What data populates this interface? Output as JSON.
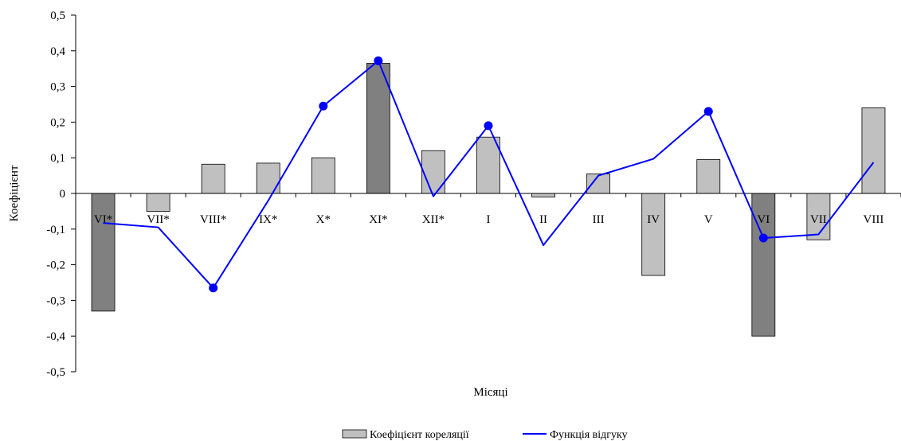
{
  "chart_data": {
    "type": "bar",
    "xlabel": "Місяці",
    "ylabel": "Коефіцієнт",
    "ylim": [
      -0.5,
      0.5
    ],
    "yticks": [
      0.5,
      0.4,
      0.3,
      0.2,
      0.1,
      0,
      -0.1,
      -0.2,
      -0.3,
      -0.4,
      -0.5
    ],
    "ytick_labels": [
      "0,5",
      "0,4",
      "0,3",
      "0,2",
      "0,1",
      "0",
      "-0,1",
      "-0,2",
      "-0,3",
      "-0,4",
      "-0,5"
    ],
    "categories": [
      "VI*",
      "VII*",
      "VIII*",
      "IX*",
      "X*",
      "XI*",
      "XII*",
      "I",
      "II",
      "III",
      "IV",
      "V",
      "VI",
      "VII",
      "VIII"
    ],
    "series": [
      {
        "name": "Коефіцієнт кореляції",
        "kind": "bar",
        "values": [
          -0.33,
          -0.05,
          0.082,
          0.085,
          0.1,
          0.365,
          0.12,
          0.158,
          -0.01,
          0.055,
          -0.23,
          0.095,
          -0.4,
          -0.13,
          0.24
        ],
        "highlight": [
          true,
          false,
          false,
          false,
          false,
          true,
          false,
          false,
          false,
          false,
          false,
          false,
          true,
          false,
          false
        ]
      },
      {
        "name": "Функція відгуку",
        "kind": "line",
        "values": [
          -0.083,
          -0.095,
          -0.265,
          -0.02,
          0.245,
          0.372,
          -0.008,
          0.19,
          -0.145,
          0.05,
          0.097,
          0.23,
          -0.125,
          -0.115,
          0.087
        ],
        "markers": [
          false,
          false,
          true,
          false,
          true,
          true,
          false,
          true,
          false,
          false,
          false,
          true,
          true,
          false,
          false
        ]
      }
    ],
    "colors": {
      "bar_light": "#c0c0c0",
      "bar_dark": "#808080",
      "line": "#0000ff",
      "marker": "#0000ff",
      "axis": "#000000"
    },
    "grid": false,
    "legend_position": "bottom-center"
  }
}
